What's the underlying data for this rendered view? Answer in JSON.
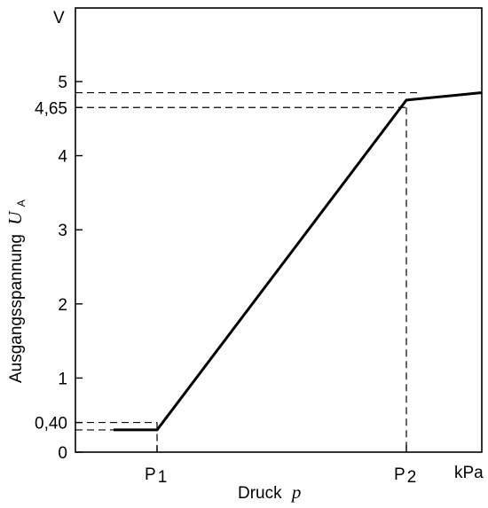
{
  "chart_data": {
    "type": "line",
    "title": "",
    "xlabel": "Druck",
    "xlabel_symbol": "p",
    "ylabel": "Ausgangsspannung",
    "ylabel_symbol": "U",
    "ylabel_subscript": "A",
    "y_unit": "V",
    "x_unit": "kPa",
    "ylim": [
      0,
      6
    ],
    "yticks": [
      {
        "value": 0,
        "label": "0"
      },
      {
        "value": 0.4,
        "label": "0,40"
      },
      {
        "value": 1,
        "label": "1"
      },
      {
        "value": 2,
        "label": "2"
      },
      {
        "value": 3,
        "label": "3"
      },
      {
        "value": 4,
        "label": "4"
      },
      {
        "value": 4.65,
        "label": "4,65"
      },
      {
        "value": 5,
        "label": "5"
      }
    ],
    "xticks": [
      {
        "id": "p1",
        "main": "P",
        "sub": "1"
      },
      {
        "id": "p2",
        "main": "P",
        "sub": "2"
      }
    ],
    "series": [
      {
        "points": [
          {
            "x": "start",
            "y": 0.3
          },
          {
            "x": "P1",
            "y": 0.3
          },
          {
            "x": "P2",
            "y": 4.75
          },
          {
            "x": "end",
            "y": 4.85
          }
        ]
      }
    ],
    "reference_levels": [
      0.3,
      0.4,
      4.65,
      4.85
    ],
    "grid": false
  }
}
